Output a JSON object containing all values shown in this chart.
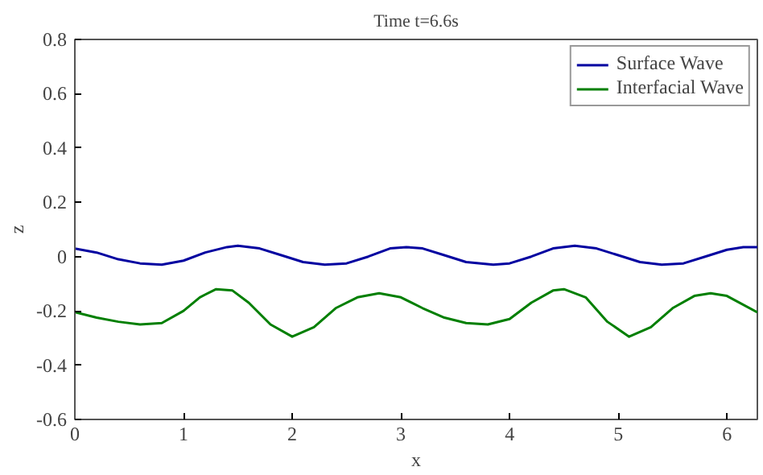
{
  "chart_data": {
    "type": "line",
    "title": "Time t=6.6s",
    "xlabel": "x",
    "ylabel": "z",
    "xlim": [
      0,
      6.28
    ],
    "ylim": [
      -0.6,
      0.8
    ],
    "xticks": [
      0,
      1,
      2,
      3,
      4,
      5,
      6
    ],
    "yticks": [
      -0.6,
      -0.4,
      -0.2,
      0,
      0.2,
      0.4,
      0.6,
      0.8
    ],
    "grid": false,
    "legend": "top right",
    "line_style": "solid",
    "marker": "none",
    "series": [
      {
        "name": "Surface Wave",
        "color": "#0000a0",
        "x": [
          0,
          0.2,
          0.4,
          0.6,
          0.8,
          1.0,
          1.2,
          1.4,
          1.5,
          1.7,
          1.9,
          2.1,
          2.3,
          2.5,
          2.7,
          2.9,
          3.05,
          3.2,
          3.4,
          3.6,
          3.85,
          4.0,
          4.2,
          4.4,
          4.6,
          4.8,
          5.0,
          5.2,
          5.4,
          5.6,
          5.8,
          6.0,
          6.15,
          6.28
        ],
        "values": [
          0.03,
          0.015,
          -0.01,
          -0.025,
          -0.03,
          -0.015,
          0.015,
          0.035,
          0.04,
          0.03,
          0.005,
          -0.02,
          -0.03,
          -0.025,
          0.0,
          0.03,
          0.035,
          0.03,
          0.005,
          -0.02,
          -0.03,
          -0.025,
          0.0,
          0.03,
          0.04,
          0.03,
          0.005,
          -0.02,
          -0.03,
          -0.025,
          0.0,
          0.025,
          0.035,
          0.035
        ]
      },
      {
        "name": "Interfacial Wave",
        "color": "#007f00",
        "x": [
          0,
          0.2,
          0.4,
          0.6,
          0.8,
          1.0,
          1.15,
          1.3,
          1.45,
          1.6,
          1.8,
          2.0,
          2.2,
          2.4,
          2.6,
          2.8,
          3.0,
          3.2,
          3.4,
          3.6,
          3.8,
          4.0,
          4.2,
          4.4,
          4.5,
          4.7,
          4.9,
          5.1,
          5.3,
          5.5,
          5.7,
          5.85,
          6.0,
          6.28
        ],
        "values": [
          -0.205,
          -0.225,
          -0.24,
          -0.25,
          -0.245,
          -0.2,
          -0.15,
          -0.12,
          -0.125,
          -0.17,
          -0.25,
          -0.295,
          -0.26,
          -0.19,
          -0.15,
          -0.135,
          -0.15,
          -0.19,
          -0.225,
          -0.245,
          -0.25,
          -0.23,
          -0.17,
          -0.125,
          -0.12,
          -0.15,
          -0.24,
          -0.295,
          -0.26,
          -0.19,
          -0.145,
          -0.135,
          -0.145,
          -0.205
        ]
      }
    ]
  }
}
